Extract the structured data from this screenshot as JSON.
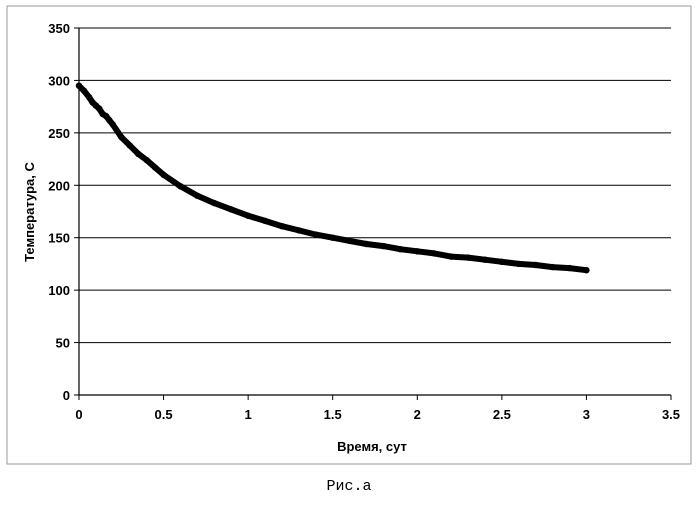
{
  "chart_data": {
    "type": "scatter",
    "title": "",
    "xlabel": "Время, сут",
    "ylabel": "Температура, С",
    "xlim": [
      0,
      3.5
    ],
    "ylim": [
      0,
      350
    ],
    "x_ticks": [
      "0",
      "0.5",
      "1",
      "1.5",
      "2",
      "2.5",
      "3",
      "3.5"
    ],
    "y_ticks": [
      "0",
      "50",
      "100",
      "150",
      "200",
      "250",
      "300",
      "350"
    ],
    "grid": "horizontal",
    "legend": "none",
    "series": [
      {
        "color": "#000000",
        "points": [
          [
            0.0,
            295
          ],
          [
            0.03,
            290
          ],
          [
            0.06,
            284
          ],
          [
            0.08,
            279
          ],
          [
            0.1,
            276
          ],
          [
            0.12,
            273
          ],
          [
            0.14,
            268
          ],
          [
            0.16,
            266
          ],
          [
            0.18,
            262
          ],
          [
            0.2,
            258
          ],
          [
            0.25,
            246
          ],
          [
            0.3,
            238
          ],
          [
            0.35,
            230
          ],
          [
            0.4,
            224
          ],
          [
            0.45,
            217
          ],
          [
            0.5,
            210
          ],
          [
            0.6,
            199
          ],
          [
            0.7,
            190
          ],
          [
            0.8,
            183
          ],
          [
            0.9,
            177
          ],
          [
            1.0,
            171
          ],
          [
            1.1,
            166
          ],
          [
            1.2,
            161
          ],
          [
            1.3,
            157
          ],
          [
            1.4,
            153
          ],
          [
            1.5,
            150
          ],
          [
            1.6,
            147
          ],
          [
            1.7,
            144
          ],
          [
            1.8,
            142
          ],
          [
            1.9,
            139
          ],
          [
            2.0,
            137
          ],
          [
            2.1,
            135
          ],
          [
            2.2,
            132
          ],
          [
            2.3,
            131
          ],
          [
            2.4,
            129
          ],
          [
            2.5,
            127
          ],
          [
            2.6,
            125
          ],
          [
            2.7,
            124
          ],
          [
            2.8,
            122
          ],
          [
            2.9,
            121
          ],
          [
            3.0,
            119
          ]
        ]
      }
    ]
  },
  "caption": "Рис.а"
}
